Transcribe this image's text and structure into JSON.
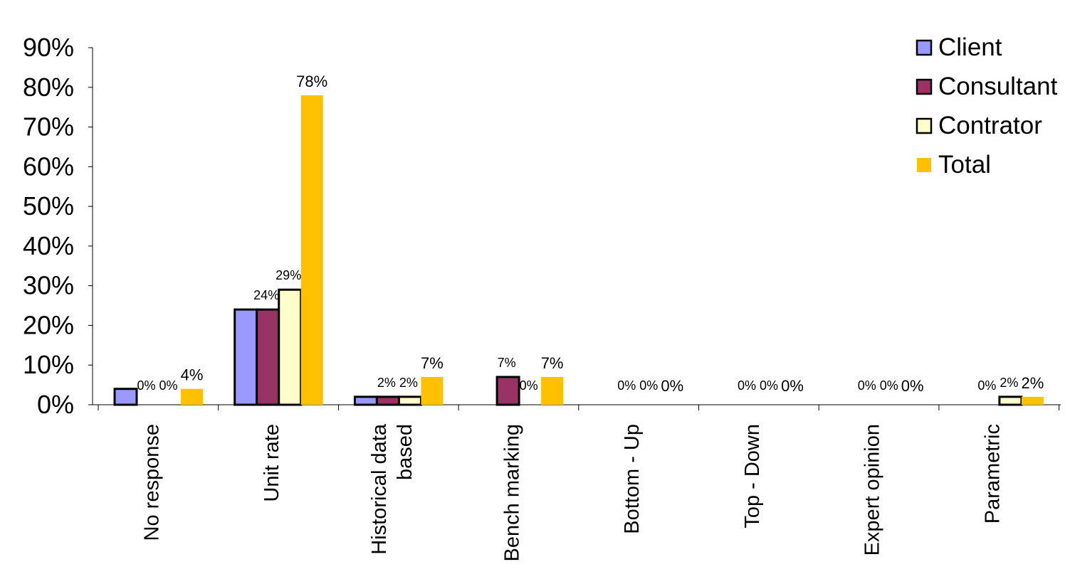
{
  "chart_data": {
    "type": "bar",
    "categories": [
      "No response",
      "Unit rate",
      "Historical data based",
      "Bench marking",
      "Bottom - Up",
      "Top - Down",
      "Expert opinion",
      "Parametric"
    ],
    "category_lines": [
      [
        "No response"
      ],
      [
        "Unit rate"
      ],
      [
        "Historical data",
        "based"
      ],
      [
        "Bench marking"
      ],
      [
        "Bottom - Up"
      ],
      [
        "Top - Down"
      ],
      [
        "Expert opinion"
      ],
      [
        "Parametric"
      ]
    ],
    "series": [
      {
        "name": "Client",
        "color": "#9999ff",
        "outlined": true,
        "values": [
          4,
          24,
          2,
          0,
          0,
          0,
          0,
          0
        ],
        "labels": [
          null,
          null,
          null,
          null,
          null,
          null,
          null,
          null
        ]
      },
      {
        "name": "Consultant",
        "color": "#993366",
        "outlined": true,
        "values": [
          0,
          24,
          2,
          7,
          0,
          0,
          0,
          0
        ],
        "labels": [
          "0%",
          "24%",
          "2%",
          "7%",
          "0%",
          "0%",
          "0%",
          "0%"
        ]
      },
      {
        "name": "Contrator",
        "color": "#ffffcc",
        "outlined": true,
        "values": [
          0,
          29,
          2,
          0,
          0,
          0,
          0,
          2
        ],
        "labels": [
          "0%",
          "29%",
          "2%",
          "0%",
          "0%",
          "0%",
          "0%",
          "2%"
        ]
      },
      {
        "name": "Total",
        "color": "#ffc000",
        "outlined": false,
        "values": [
          4,
          78,
          7,
          7,
          0,
          0,
          0,
          2
        ],
        "labels": [
          "4%",
          "78%",
          "7%",
          "7%",
          "0%",
          "0%",
          "0%",
          "2%"
        ]
      }
    ],
    "yticks": [
      "0%",
      "10%",
      "20%",
      "30%",
      "40%",
      "50%",
      "60%",
      "70%",
      "80%",
      "90%"
    ],
    "ylim": [
      0,
      90
    ],
    "ytick_step": 10,
    "xlabel": "",
    "ylabel": "",
    "grid": false,
    "legend_position": "top-right"
  }
}
